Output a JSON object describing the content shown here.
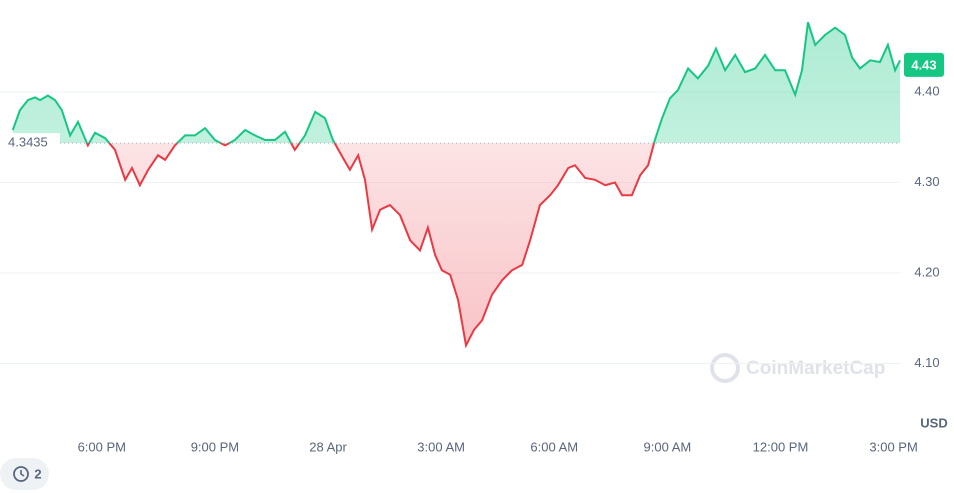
{
  "chart_data": {
    "type": "line",
    "x": [
      15.64,
      15.83,
      16.04,
      16.23,
      16.36,
      16.57,
      16.76,
      16.94,
      17.16,
      17.37,
      17.63,
      17.82,
      18.09,
      18.35,
      18.62,
      18.8,
      19.01,
      19.23,
      19.49,
      19.68,
      19.94,
      20.21,
      20.47,
      20.74,
      21.0,
      21.27,
      21.53,
      21.8,
      22.06,
      22.33,
      22.59,
      22.86,
      23.12,
      23.39,
      23.66,
      23.92,
      24.13,
      24.4,
      24.58,
      24.8,
      24.98,
      25.17,
      25.38,
      25.64,
      25.91,
      26.18,
      26.44,
      26.65,
      26.84,
      27.02,
      27.24,
      27.45,
      27.66,
      27.87,
      28.09,
      28.35,
      28.62,
      28.88,
      29.15,
      29.36,
      29.62,
      29.89,
      30.1,
      30.37,
      30.55,
      30.82,
      31.08,
      31.35,
      31.61,
      31.8,
      32.06,
      32.28,
      32.49,
      32.67,
      32.86,
      33.07,
      33.28,
      33.55,
      33.81,
      34.08,
      34.29,
      34.53,
      34.8,
      35.06,
      35.33,
      35.59,
      35.86,
      36.12,
      36.39,
      36.57,
      36.73,
      36.92,
      37.18,
      37.45,
      37.71,
      37.9,
      38.11,
      38.38,
      38.64,
      38.85,
      39.04,
      39.17
    ],
    "values": [
      4.358,
      4.38,
      4.391,
      4.394,
      4.391,
      4.396,
      4.391,
      4.38,
      4.352,
      4.367,
      4.341,
      4.355,
      4.349,
      4.336,
      4.303,
      4.316,
      4.297,
      4.314,
      4.33,
      4.325,
      4.341,
      4.352,
      4.352,
      4.36,
      4.347,
      4.341,
      4.347,
      4.358,
      4.352,
      4.347,
      4.347,
      4.356,
      4.336,
      4.352,
      4.378,
      4.371,
      4.347,
      4.327,
      4.314,
      4.33,
      4.303,
      4.248,
      4.27,
      4.275,
      4.264,
      4.236,
      4.225,
      4.25,
      4.22,
      4.203,
      4.198,
      4.17,
      4.12,
      4.137,
      4.148,
      4.176,
      4.192,
      4.203,
      4.209,
      4.236,
      4.275,
      4.286,
      4.297,
      4.316,
      4.319,
      4.305,
      4.303,
      4.297,
      4.3,
      4.286,
      4.286,
      4.308,
      4.319,
      4.347,
      4.371,
      4.393,
      4.402,
      4.426,
      4.415,
      4.429,
      4.448,
      4.424,
      4.441,
      4.422,
      4.426,
      4.441,
      4.424,
      4.424,
      4.397,
      4.424,
      4.477,
      4.452,
      4.463,
      4.471,
      4.463,
      4.438,
      4.426,
      4.435,
      4.433,
      4.452,
      4.424,
      4.435
    ],
    "up_color": "#16c784",
    "down_color": "#ea3943",
    "baseline": 4.3435,
    "current_price": 4.43,
    "xlim": [
      15.3,
      39.17
    ],
    "xticks": [
      {
        "value": 18,
        "label": "6:00 PM"
      },
      {
        "value": 21,
        "label": "9:00 PM"
      },
      {
        "value": 24,
        "label": "28 Apr"
      },
      {
        "value": 27,
        "label": "3:00 AM"
      },
      {
        "value": 30,
        "label": "6:00 AM"
      },
      {
        "value": 33,
        "label": "9:00 AM"
      },
      {
        "value": 36,
        "label": "12:00 PM"
      },
      {
        "value": 39,
        "label": "3:00 PM"
      }
    ],
    "ylim": [
      4.06,
      4.5
    ],
    "yticks": [
      {
        "value": 4.4,
        "label": "4.40"
      },
      {
        "value": 4.3,
        "label": "4.30"
      },
      {
        "value": 4.2,
        "label": "4.20"
      },
      {
        "value": 4.1,
        "label": "4.10"
      }
    ],
    "grid": true,
    "unit": "USD",
    "watermark": "CoinMarketCap",
    "badge": "2"
  }
}
